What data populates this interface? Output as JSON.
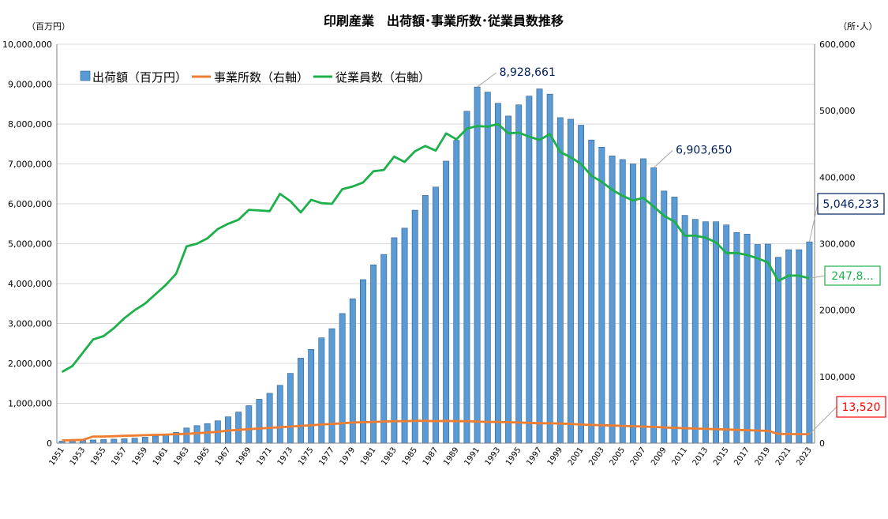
{
  "chart_data": {
    "type": "bar",
    "title": "印刷産業　出荷額･事業所数･従業員数推移",
    "left_unit": "（百万円）",
    "right_unit": "（所･人）",
    "ylim": [
      0,
      10000000
    ],
    "y2lim": [
      0,
      600000
    ],
    "left_ticks": [
      "0",
      "1,000,000",
      "2,000,000",
      "3,000,000",
      "4,000,000",
      "5,000,000",
      "6,000,000",
      "7,000,000",
      "8,000,000",
      "9,000,000",
      "10,000,000"
    ],
    "right_ticks": [
      "0",
      "100,000",
      "200,000",
      "300,000",
      "400,000",
      "500,000",
      "600,000"
    ],
    "grid": true,
    "legend_position": "top-left",
    "x": [
      1951,
      1952,
      1953,
      1954,
      1955,
      1956,
      1957,
      1958,
      1959,
      1960,
      1961,
      1962,
      1963,
      1964,
      1965,
      1966,
      1967,
      1968,
      1969,
      1970,
      1971,
      1972,
      1973,
      1974,
      1975,
      1976,
      1977,
      1978,
      1979,
      1980,
      1981,
      1982,
      1983,
      1984,
      1985,
      1986,
      1987,
      1988,
      1989,
      1990,
      1991,
      1992,
      1993,
      1994,
      1995,
      1996,
      1997,
      1998,
      1999,
      2000,
      2001,
      2002,
      2003,
      2004,
      2005,
      2006,
      2007,
      2008,
      2009,
      2010,
      2011,
      2012,
      2013,
      2014,
      2015,
      2016,
      2017,
      2018,
      2019,
      2020,
      2021,
      2022,
      2023
    ],
    "series": [
      {
        "name": "出荷額（百万円）",
        "kind": "bar",
        "axis": "left",
        "color": "#5B9BD5",
        "values": [
          50000,
          55000,
          65000,
          80000,
          90000,
          100000,
          110000,
          125000,
          150000,
          180000,
          220000,
          270000,
          380000,
          440000,
          490000,
          560000,
          660000,
          780000,
          940000,
          1100000,
          1250000,
          1450000,
          1750000,
          2130000,
          2350000,
          2640000,
          2870000,
          3250000,
          3620000,
          4100000,
          4470000,
          4730000,
          5150000,
          5390000,
          5840000,
          6210000,
          6420000,
          7070000,
          7590000,
          8320000,
          8928661,
          8800000,
          8520000,
          8200000,
          8480000,
          8700000,
          8880000,
          8750000,
          8160000,
          8120000,
          7970000,
          7600000,
          7420000,
          7200000,
          7110000,
          7000000,
          7130000,
          6903650,
          6320000,
          6170000,
          5710000,
          5610000,
          5550000,
          5550000,
          5470000,
          5280000,
          5240000,
          4980000,
          4990000,
          4660000,
          4850000,
          4850000,
          5046233
        ]
      },
      {
        "name": "事業所数（右軸）",
        "kind": "line",
        "axis": "right",
        "color": "#ED7D31",
        "values": [
          4000,
          4500,
          5000,
          10000,
          10000,
          10500,
          11000,
          11500,
          12000,
          12500,
          13000,
          13500,
          14000,
          15000,
          16000,
          17000,
          19000,
          20000,
          21000,
          22000,
          23000,
          24000,
          25000,
          26000,
          27000,
          28000,
          29000,
          30000,
          31000,
          31500,
          32000,
          32500,
          33000,
          33000,
          33500,
          33500,
          33000,
          33500,
          33000,
          33000,
          32500,
          32000,
          32000,
          31500,
          31000,
          30500,
          30000,
          30000,
          29500,
          29000,
          28000,
          27500,
          27000,
          26500,
          26000,
          25500,
          25000,
          24500,
          23500,
          23000,
          22500,
          22000,
          21500,
          21000,
          20500,
          20000,
          19500,
          19000,
          18500,
          14000,
          13700,
          13600,
          13520
        ]
      },
      {
        "name": "従業員数（右軸）",
        "kind": "line",
        "axis": "right",
        "color": "#1DB04A",
        "values": [
          107000,
          116000,
          136000,
          156000,
          161000,
          173000,
          188000,
          200000,
          210000,
          224000,
          238000,
          255000,
          296000,
          300000,
          308000,
          322000,
          330000,
          336000,
          351000,
          350000,
          349000,
          375000,
          364000,
          347000,
          366000,
          361000,
          360000,
          382000,
          386000,
          392000,
          409000,
          411000,
          431000,
          423000,
          439000,
          447000,
          440000,
          466000,
          457000,
          473000,
          477000,
          476000,
          480000,
          466000,
          467000,
          461000,
          456000,
          465000,
          438000,
          430000,
          420000,
          402000,
          393000,
          381000,
          372000,
          365000,
          369000,
          356000,
          342000,
          333000,
          312000,
          312000,
          309000,
          302000,
          286000,
          286000,
          283000,
          278000,
          272000,
          244000,
          252000,
          252000,
          247800
        ]
      }
    ],
    "annotations": [
      {
        "text": "8,928,661",
        "year": 1991,
        "series": 0,
        "color": "#002060",
        "boxed": false
      },
      {
        "text": "6,903,650",
        "year": 2008,
        "series": 0,
        "color": "#002060",
        "boxed": false
      },
      {
        "text": "5,046,233",
        "year": 2023,
        "series": 0,
        "color": "#002060",
        "boxed": true
      },
      {
        "text": "247,8...",
        "year": 2023,
        "series": 2,
        "color": "#1DB04A",
        "boxed": true
      },
      {
        "text": "13,520",
        "year": 2023,
        "series": 1,
        "color": "#FF0000",
        "boxed": true
      }
    ]
  }
}
